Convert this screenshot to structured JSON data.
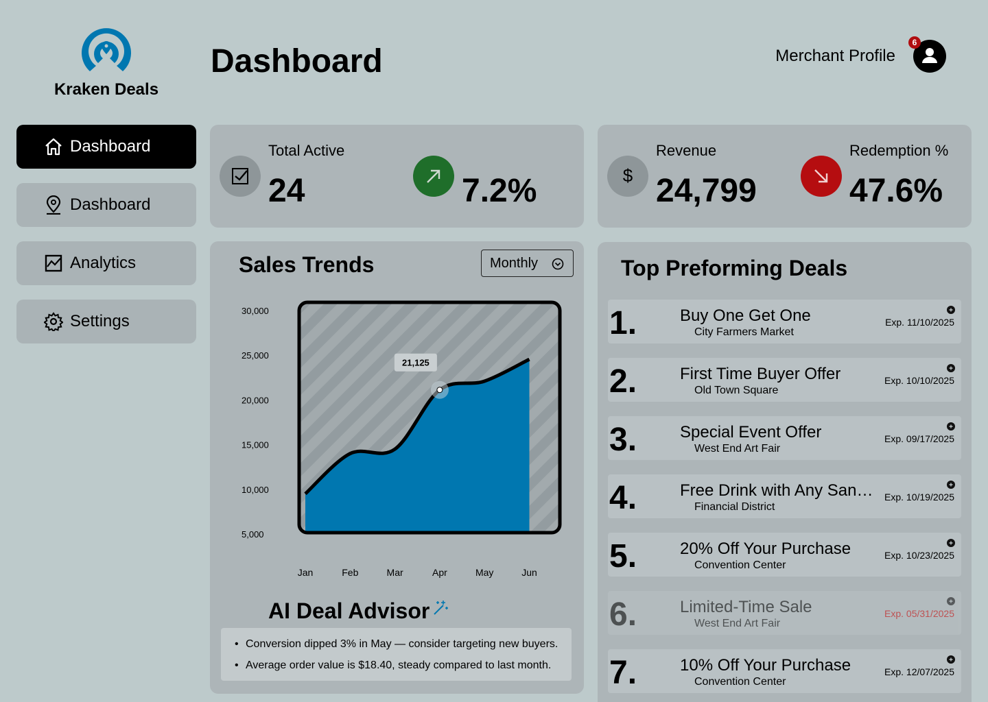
{
  "brand": {
    "name": "Kraken Deals"
  },
  "header": {
    "title": "Dashboard",
    "profile": "Merchant Profile",
    "notifications": "6"
  },
  "nav": [
    {
      "label": "Dashboard",
      "icon": "home",
      "active": true
    },
    {
      "label": "Dashboard",
      "icon": "pin"
    },
    {
      "label": "Analytics",
      "icon": "chart"
    },
    {
      "label": "Settings",
      "icon": "gear"
    }
  ],
  "stats": [
    {
      "label": "Total Active",
      "value": "24",
      "icon": "check"
    },
    {
      "value": "7.2%",
      "trend": "up"
    },
    {
      "label": "Revenue",
      "value": "24,799",
      "icon": "dollar"
    },
    {
      "label": "Redemption %",
      "value": "47.6%",
      "trend": "down"
    }
  ],
  "sales_controls": {
    "period": "Monthly"
  },
  "chart_data": {
    "type": "area",
    "title": "Sales Trends",
    "categories": [
      "Jan",
      "Feb",
      "Mar",
      "Apr",
      "May",
      "Jun"
    ],
    "values": [
      9500,
      14000,
      14500,
      21125,
      22100,
      24550
    ],
    "value_labels": [
      null,
      null,
      null,
      "21,125",
      null,
      null
    ],
    "color": "#0077b0",
    "ylim": [
      5000,
      30000
    ],
    "yticks": [
      {
        "value": 5000,
        "label": "5,000"
      },
      {
        "value": 10000,
        "label": "10,000"
      },
      {
        "value": 15000,
        "label": "15,000"
      },
      {
        "value": 20000,
        "label": "20,000"
      },
      {
        "value": 25000,
        "label": "25,000"
      },
      {
        "value": 30000,
        "label": "30,000"
      }
    ]
  },
  "advisor": {
    "title": "AI Deal Advisor",
    "tips": [
      "Conversion dipped 3% in May — consider targeting new buyers.",
      "Average order value is $18.40, steady compared to last month."
    ]
  },
  "deals": {
    "title": "Top Preforming Deals",
    "items": [
      {
        "rank": "1.",
        "title": "Buy One Get One",
        "location": "City Farmers Market",
        "expires": "Exp. 11/10/2025"
      },
      {
        "rank": "2.",
        "title": "First Time Buyer Offer",
        "location": "Old Town Square",
        "expires": "Exp. 10/10/2025"
      },
      {
        "rank": "3.",
        "title": "Special Event Offer",
        "location": "West End Art Fair",
        "expires": "Exp. 09/17/2025"
      },
      {
        "rank": "4.",
        "title": "Free Drink with Any San…",
        "location": "Financial District",
        "expires": "Exp. 10/19/2025"
      },
      {
        "rank": "5.",
        "title": "20% Off Your Purchase",
        "location": "Convention Center",
        "expires": "Exp. 10/23/2025"
      },
      {
        "rank": "6.",
        "title": "Limited-Time Sale",
        "location": "West End Art Fair",
        "expires": "Exp. 05/31/2025",
        "expired": true
      },
      {
        "rank": "7.",
        "title": "10% Off Your Purchase",
        "location": "Convention Center",
        "expires": "Exp. 12/07/2025"
      }
    ]
  }
}
